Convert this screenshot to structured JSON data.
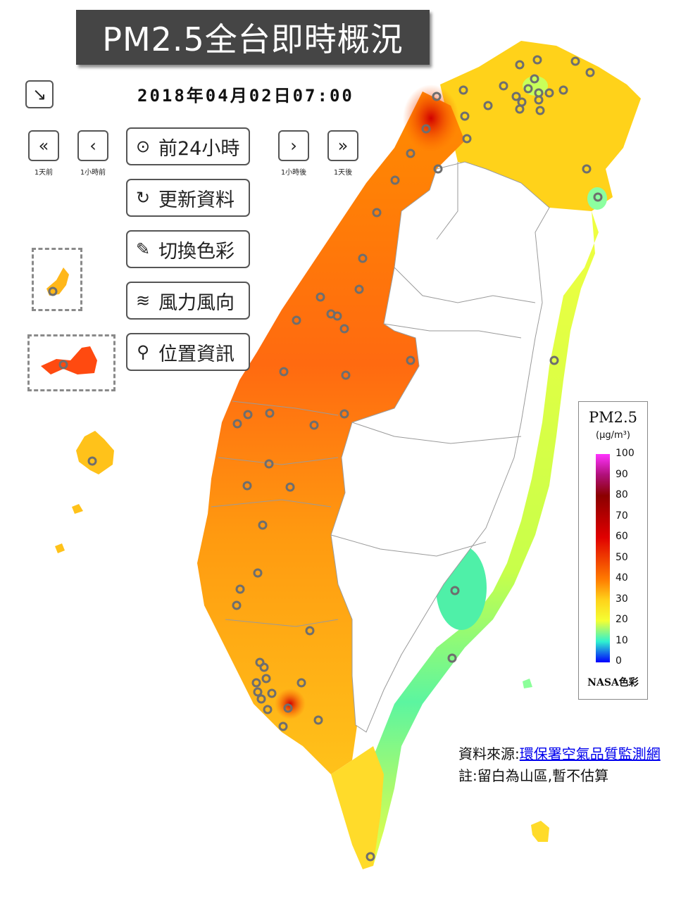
{
  "title": "PM2.5全台即時概況",
  "timestamp": "2018年04月02日07:00",
  "controls": {
    "collapse_icon": "collapse-arrow-icon",
    "nav": [
      {
        "icon": "double-chevron-left-icon",
        "glyph": "«",
        "caption": "1天前"
      },
      {
        "icon": "chevron-left-icon",
        "glyph": "‹",
        "caption": "1小時前"
      },
      {
        "icon": "chevron-right-icon",
        "glyph": "›",
        "caption": "1小時後"
      },
      {
        "icon": "double-chevron-right-icon",
        "glyph": "»",
        "caption": "1天後"
      }
    ],
    "buttons": [
      {
        "icon": "play-icon",
        "glyph": "⊙",
        "label": "前24小時"
      },
      {
        "icon": "refresh-icon",
        "glyph": "↻",
        "label": "更新資料"
      },
      {
        "icon": "paint-brush-icon",
        "glyph": "✎",
        "label": "切換色彩"
      },
      {
        "icon": "wind-icon",
        "glyph": "≋",
        "label": "風力風向"
      },
      {
        "icon": "location-pin-icon",
        "glyph": "⚲",
        "label": "位置資訊"
      }
    ]
  },
  "legend": {
    "title": "PM2.5",
    "unit": "(μg/m³)",
    "ticks": [
      "100",
      "90",
      "80",
      "70",
      "60",
      "50",
      "40",
      "30",
      "20",
      "10",
      "0"
    ],
    "footer": "NASA色彩",
    "colors": [
      "#ff33ff",
      "#8b0000",
      "#e00000",
      "#ff7a00",
      "#ffd21a",
      "#f4ff33",
      "#2ff2d0",
      "#0000ff"
    ]
  },
  "source": {
    "prefix": "資料來源:",
    "link": "環保署空氣品質監測網"
  },
  "note": "註:留白為山區,暫不估算"
}
